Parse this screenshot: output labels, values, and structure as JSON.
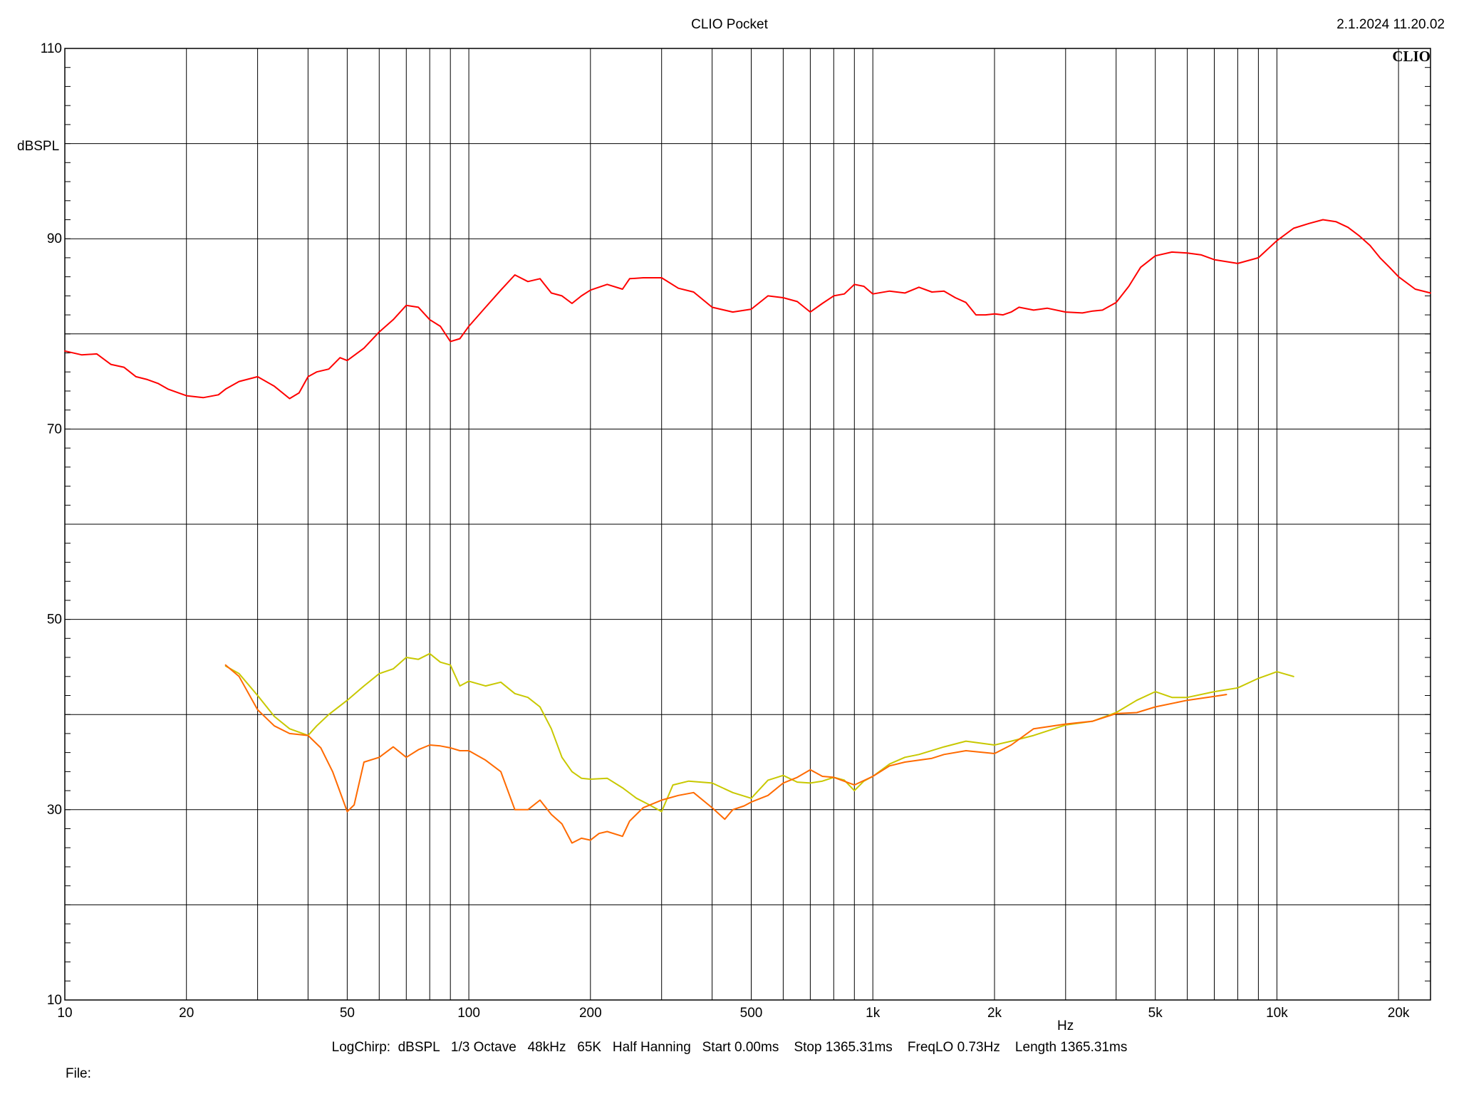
{
  "header": {
    "title": "CLIO Pocket",
    "timestamp": "2.1.2024 11.20.02",
    "brand": "CLIO"
  },
  "footer": {
    "info": "LogChirp:  dBSPL   1/3 Octave   48kHz   65K   Half Hanning   Start 0.00ms    Stop 1365.31ms    FreqLO 0.73Hz    Length 1365.31ms",
    "file_label": "File:"
  },
  "colors": {
    "grid": "#000000",
    "series_red": "#ff0000",
    "series_yellow": "#c8c800",
    "series_orange": "#ff6a00"
  },
  "chart_data": {
    "type": "line",
    "title": "CLIO Pocket",
    "xscale": "log",
    "xlim": [
      10,
      24000
    ],
    "ylim": [
      10,
      110
    ],
    "ylabel": "dBSPL",
    "xunit": "Hz",
    "xticks": [
      {
        "v": 10,
        "label": "10"
      },
      {
        "v": 20,
        "label": "20"
      },
      {
        "v": 50,
        "label": "50"
      },
      {
        "v": 100,
        "label": "100"
      },
      {
        "v": 200,
        "label": "200"
      },
      {
        "v": 500,
        "label": "500"
      },
      {
        "v": 1000,
        "label": "1k"
      },
      {
        "v": 2000,
        "label": "2k"
      },
      {
        "v": 5000,
        "label": "5k"
      },
      {
        "v": 10000,
        "label": "10k"
      },
      {
        "v": 20000,
        "label": "20k"
      }
    ],
    "yticks": [
      {
        "v": 110,
        "label": "110"
      },
      {
        "v": 90,
        "label": "90"
      },
      {
        "v": 70,
        "label": "70"
      },
      {
        "v": 50,
        "label": "50"
      },
      {
        "v": 30,
        "label": "30"
      },
      {
        "v": 10,
        "label": "10"
      }
    ],
    "grid": true,
    "series": [
      {
        "color": "#ff0000",
        "x": [
          10,
          11,
          12,
          13,
          14,
          15,
          16,
          17,
          18,
          20,
          22,
          24,
          25,
          27,
          30,
          33,
          36,
          38,
          40,
          42,
          45,
          48,
          50,
          55,
          60,
          65,
          70,
          75,
          80,
          85,
          90,
          95,
          100,
          110,
          120,
          130,
          140,
          150,
          160,
          170,
          180,
          190,
          200,
          220,
          240,
          250,
          270,
          300,
          330,
          360,
          400,
          450,
          500,
          550,
          600,
          650,
          700,
          750,
          800,
          850,
          900,
          950,
          1000,
          1100,
          1200,
          1300,
          1400,
          1500,
          1600,
          1700,
          1800,
          1900,
          2000,
          2100,
          2200,
          2300,
          2500,
          2700,
          3000,
          3300,
          3500,
          3700,
          4000,
          4300,
          4600,
          5000,
          5500,
          6000,
          6500,
          7000,
          8000,
          9000,
          10000,
          11000,
          12000,
          13000,
          14000,
          15000,
          16000,
          17000,
          18000,
          19000,
          20000,
          22000,
          24000
        ],
        "y": [
          78.2,
          77.8,
          77.9,
          76.8,
          76.5,
          75.5,
          75.2,
          74.8,
          74.2,
          73.5,
          73.3,
          73.6,
          74.2,
          75.0,
          75.5,
          74.5,
          73.2,
          73.8,
          75.5,
          76.0,
          76.3,
          77.5,
          77.2,
          78.5,
          80.2,
          81.5,
          83.0,
          82.8,
          81.5,
          80.8,
          79.2,
          79.5,
          80.8,
          82.8,
          84.6,
          86.2,
          85.5,
          85.8,
          84.3,
          84.0,
          83.2,
          84.0,
          84.6,
          85.2,
          84.7,
          85.8,
          85.9,
          85.9,
          84.8,
          84.4,
          82.8,
          82.3,
          82.6,
          84.0,
          83.8,
          83.4,
          82.3,
          83.2,
          84.0,
          84.2,
          85.2,
          85.0,
          84.2,
          84.5,
          84.3,
          84.9,
          84.4,
          84.5,
          83.8,
          83.3,
          82.0,
          82.0,
          82.1,
          82.0,
          82.3,
          82.8,
          82.5,
          82.7,
          82.3,
          82.2,
          82.4,
          82.5,
          83.3,
          85.0,
          87.0,
          88.2,
          88.6,
          88.5,
          88.3,
          87.8,
          87.4,
          88.0,
          89.8,
          91.1,
          91.6,
          92.0,
          91.8,
          91.2,
          90.3,
          89.3,
          88.0,
          87.0,
          86.0,
          84.7,
          84.3
        ]
      },
      {
        "color": "#c8c800",
        "x": [
          25,
          27,
          30,
          33,
          36,
          40,
          42,
          45,
          50,
          55,
          60,
          65,
          70,
          75,
          80,
          85,
          90,
          95,
          100,
          110,
          120,
          130,
          140,
          150,
          160,
          170,
          180,
          190,
          200,
          220,
          240,
          260,
          280,
          300,
          320,
          350,
          400,
          450,
          500,
          550,
          600,
          650,
          700,
          750,
          800,
          850,
          900,
          950,
          1000,
          1100,
          1200,
          1300,
          1500,
          1700,
          2000,
          2200,
          2500,
          3000,
          3500,
          4000,
          4500,
          5000,
          5500,
          6000,
          7000,
          8000,
          9000,
          10000,
          11000
        ],
        "y": [
          45.1,
          44.3,
          42.0,
          39.8,
          38.5,
          37.8,
          38.8,
          40.0,
          41.5,
          43.0,
          44.3,
          44.8,
          46.0,
          45.8,
          46.4,
          45.5,
          45.2,
          43.0,
          43.5,
          43.0,
          43.4,
          42.2,
          41.8,
          40.8,
          38.5,
          35.5,
          34.0,
          33.3,
          33.2,
          33.3,
          32.3,
          31.2,
          30.5,
          29.8,
          32.6,
          33.0,
          32.8,
          31.8,
          31.2,
          33.1,
          33.6,
          32.9,
          32.8,
          33.0,
          33.4,
          33.1,
          32.0,
          33.0,
          33.5,
          34.8,
          35.5,
          35.8,
          36.6,
          37.2,
          36.8,
          37.2,
          37.8,
          38.9,
          39.3,
          40.2,
          41.5,
          42.4,
          41.8,
          41.8,
          42.4,
          42.8,
          43.8,
          44.5,
          44.0
        ]
      },
      {
        "color": "#ff6a00",
        "x": [
          25,
          27,
          30,
          33,
          36,
          40,
          43,
          46,
          50,
          52,
          55,
          60,
          65,
          70,
          75,
          80,
          85,
          90,
          95,
          100,
          110,
          120,
          130,
          140,
          150,
          160,
          170,
          180,
          190,
          200,
          210,
          220,
          240,
          250,
          270,
          300,
          330,
          360,
          400,
          430,
          450,
          480,
          500,
          550,
          600,
          650,
          700,
          750,
          800,
          900,
          1000,
          1100,
          1200,
          1400,
          1500,
          1700,
          2000,
          2200,
          2500,
          3000,
          3500,
          4000,
          4500,
          5000,
          6000,
          7000,
          7500
        ],
        "y": [
          45.2,
          44.0,
          40.5,
          38.8,
          38.0,
          37.8,
          36.5,
          34.0,
          29.8,
          30.5,
          35.0,
          35.5,
          36.6,
          35.5,
          36.3,
          36.8,
          36.7,
          36.5,
          36.2,
          36.2,
          35.2,
          34.0,
          30.0,
          30.0,
          31.0,
          29.5,
          28.5,
          26.5,
          27.0,
          26.8,
          27.5,
          27.7,
          27.2,
          28.8,
          30.2,
          31.0,
          31.5,
          31.8,
          30.2,
          29.0,
          30.0,
          30.4,
          30.8,
          31.5,
          32.8,
          33.4,
          34.2,
          33.5,
          33.4,
          32.6,
          33.5,
          34.6,
          35.0,
          35.4,
          35.8,
          36.2,
          35.9,
          36.8,
          38.5,
          39.0,
          39.3,
          40.1,
          40.2,
          40.8,
          41.5,
          41.9,
          42.1
        ]
      }
    ]
  }
}
